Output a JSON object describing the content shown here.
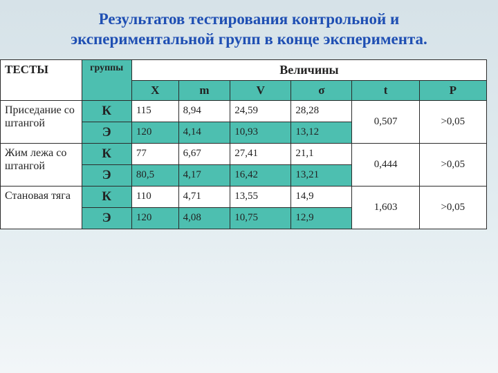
{
  "title": "Результатов тестирования контрольной и экспериментальной групп в конце эксперимента.",
  "table": {
    "headers": {
      "tests": "ТЕСТЫ",
      "groups": "группы",
      "values": "Величины",
      "cols": {
        "x": "X",
        "m": "m",
        "v": "V",
        "sigma": "σ",
        "t": "t",
        "p": "P"
      }
    },
    "rows": [
      {
        "test": "Приседание со штангой",
        "k": {
          "label": "К",
          "x": "115",
          "m": "8,94",
          "v": "24,59",
          "s": "28,28"
        },
        "e": {
          "label": "Э",
          "x": "120",
          "m": "4,14",
          "v": "10,93",
          "s": "13,12"
        },
        "t": "0,507",
        "p": ">0,05"
      },
      {
        "test": "Жим лежа со штангой",
        "k": {
          "label": "К",
          "x": "77",
          "m": "6,67",
          "v": "27,41",
          "s": "21,1"
        },
        "e": {
          "label": "Э",
          "x": "80,5",
          "m": "4,17",
          "v": "16,42",
          "s": "13,21"
        },
        "t": "0,444",
        "p": ">0,05"
      },
      {
        "test": "Становая тяга",
        "k": {
          "label": "К",
          "x": "110",
          "m": "4,71",
          "v": "13,55",
          "s": "14,9"
        },
        "e": {
          "label": "Э",
          "x": "120",
          "m": "4,08",
          "v": "10,75",
          "s": "12,9"
        },
        "t": "1,603",
        "p": ">0,05"
      }
    ]
  },
  "colors": {
    "title": "#1f4fb3",
    "teal": "#4dbfb0",
    "border": "#2a2a2a",
    "bg_top": "#d6e2e8",
    "bg_bottom": "#f2f6f8"
  }
}
